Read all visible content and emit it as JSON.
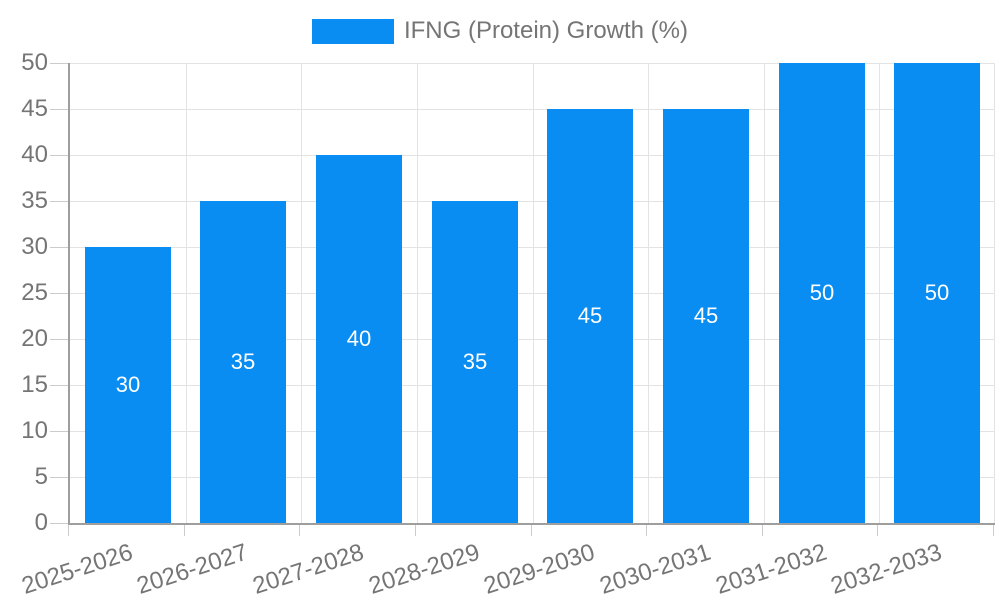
{
  "legend": {
    "label": "IFNG (Protein) Growth (%)"
  },
  "chart_data": {
    "type": "bar",
    "title": "",
    "xlabel": "",
    "ylabel": "",
    "categories": [
      "2025-2026",
      "2026-2027",
      "2027-2028",
      "2028-2029",
      "2029-2030",
      "2030-2031",
      "2031-2032",
      "2032-2033"
    ],
    "series": [
      {
        "name": "IFNG (Protein) Growth (%)",
        "values": [
          30,
          35,
          40,
          35,
          45,
          45,
          50,
          50
        ]
      }
    ],
    "bar_labels": [
      "30",
      "35",
      "40",
      "35",
      "45",
      "45",
      "50",
      "50"
    ],
    "ylim": [
      0,
      50
    ],
    "yticks": [
      0,
      5,
      10,
      15,
      20,
      25,
      30,
      35,
      40,
      45,
      50
    ],
    "grid": true,
    "legend_position": "top-center",
    "colors": {
      "bar": "#0a8df2",
      "bar_label": "#ffffff",
      "axis_text": "#757575",
      "axis_line": "#9e9e9e",
      "gridline": "#e3e3e3",
      "tick": "#cccccc",
      "background": "#ffffff"
    }
  }
}
